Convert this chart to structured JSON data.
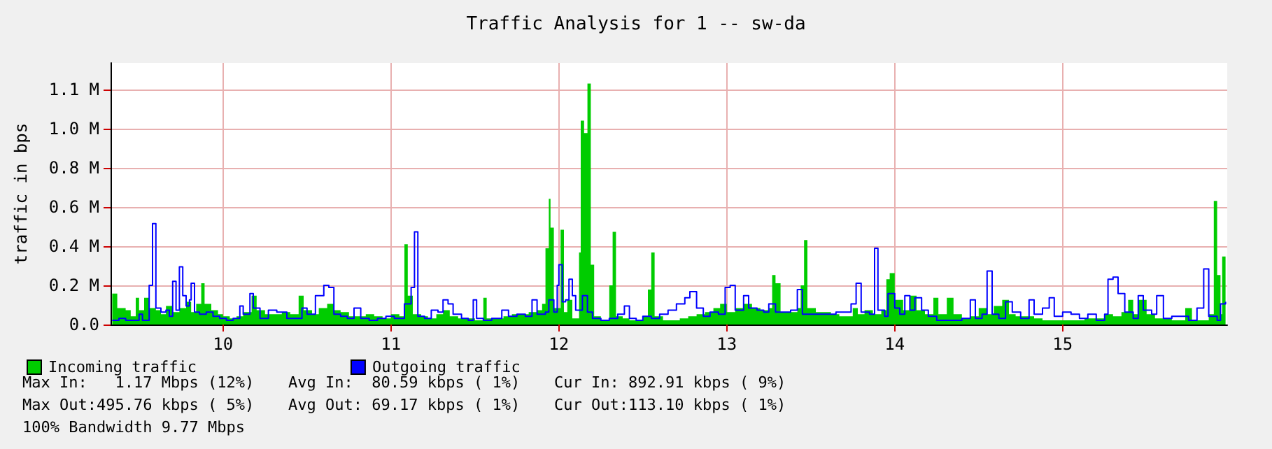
{
  "chart_data": {
    "type": "area",
    "title": "Traffic Analysis for 1 -- sw-da",
    "ylabel": "traffic in bps",
    "xlim": [
      9.33,
      15.98
    ],
    "xticks": [
      10,
      11,
      12,
      13,
      14,
      15
    ],
    "ylim": [
      0,
      1.27
    ],
    "yticks": [
      {
        "value": 0,
        "label": "0.0"
      },
      {
        "value": 0.19,
        "label": "0.2 M"
      },
      {
        "value": 0.38,
        "label": "0.4 M"
      },
      {
        "value": 0.57,
        "label": "0.6 M"
      },
      {
        "value": 0.76,
        "label": "0.8 M"
      },
      {
        "value": 0.95,
        "label": "1.0 M"
      },
      {
        "value": 1.14,
        "label": "1.1 M"
      }
    ],
    "grid": true,
    "legend": "bottom left",
    "marker": "none",
    "series": [
      {
        "name": "Incoming traffic",
        "color": "#00cc00",
        "x": [
          9.34,
          9.37,
          9.42,
          9.45,
          9.48,
          9.5,
          9.53,
          9.56,
          9.6,
          9.63,
          9.66,
          9.7,
          9.74,
          9.78,
          9.81,
          9.84,
          9.87,
          9.89,
          9.93,
          9.97,
          10.0,
          10.04,
          10.08,
          10.12,
          10.17,
          10.2,
          10.25,
          10.3,
          10.35,
          10.4,
          10.45,
          10.48,
          10.53,
          10.57,
          10.62,
          10.66,
          10.7,
          10.75,
          10.8,
          10.85,
          10.9,
          10.95,
          11.0,
          11.05,
          11.08,
          11.1,
          11.13,
          11.18,
          11.22,
          11.27,
          11.31,
          11.35,
          11.4,
          11.45,
          11.5,
          11.55,
          11.57,
          11.62,
          11.67,
          11.72,
          11.77,
          11.82,
          11.87,
          11.9,
          11.92,
          11.94,
          11.95,
          11.97,
          12.01,
          12.03,
          12.05,
          12.08,
          12.12,
          12.13,
          12.15,
          12.17,
          12.19,
          12.21,
          12.25,
          12.28,
          12.3,
          12.32,
          12.34,
          12.38,
          12.42,
          12.46,
          12.5,
          12.53,
          12.55,
          12.57,
          12.62,
          12.67,
          12.72,
          12.77,
          12.82,
          12.87,
          12.92,
          12.96,
          13.0,
          13.05,
          13.1,
          13.15,
          13.2,
          13.25,
          13.27,
          13.29,
          13.32,
          13.37,
          13.42,
          13.44,
          13.46,
          13.48,
          13.53,
          13.58,
          13.62,
          13.67,
          13.72,
          13.75,
          13.78,
          13.82,
          13.87,
          13.92,
          13.95,
          13.97,
          14.0,
          14.05,
          14.09,
          14.13,
          14.18,
          14.23,
          14.26,
          14.31,
          14.35,
          14.4,
          14.45,
          14.5,
          14.55,
          14.59,
          14.64,
          14.68,
          14.72,
          14.78,
          14.83,
          14.88,
          14.93,
          14.98,
          15.03,
          15.08,
          15.13,
          15.18,
          15.25,
          15.3,
          15.35,
          15.39,
          15.42,
          15.45,
          15.5,
          15.55,
          15.6,
          15.65,
          15.7,
          15.73,
          15.77,
          15.82,
          15.87,
          15.9,
          15.92,
          15.94,
          15.95,
          15.97
        ],
        "values": [
          0.15,
          0.08,
          0.07,
          0.04,
          0.13,
          0.07,
          0.13,
          0.08,
          0.07,
          0.05,
          0.09,
          0.06,
          0.08,
          0.11,
          0.06,
          0.1,
          0.2,
          0.1,
          0.07,
          0.05,
          0.04,
          0.03,
          0.04,
          0.06,
          0.14,
          0.07,
          0.05,
          0.05,
          0.06,
          0.05,
          0.14,
          0.07,
          0.05,
          0.08,
          0.1,
          0.07,
          0.06,
          0.04,
          0.04,
          0.05,
          0.04,
          0.03,
          0.05,
          0.04,
          0.39,
          0.14,
          0.05,
          0.04,
          0.03,
          0.05,
          0.07,
          0.04,
          0.03,
          0.03,
          0.02,
          0.13,
          0.03,
          0.03,
          0.04,
          0.05,
          0.05,
          0.06,
          0.07,
          0.1,
          0.37,
          0.61,
          0.47,
          0.08,
          0.46,
          0.06,
          0.12,
          0.03,
          0.35,
          0.99,
          0.93,
          1.17,
          0.29,
          0.04,
          0.02,
          0.02,
          0.19,
          0.45,
          0.04,
          0.03,
          0.02,
          0.02,
          0.04,
          0.17,
          0.35,
          0.04,
          0.02,
          0.02,
          0.03,
          0.04,
          0.05,
          0.06,
          0.08,
          0.1,
          0.06,
          0.08,
          0.1,
          0.08,
          0.07,
          0.08,
          0.24,
          0.2,
          0.06,
          0.06,
          0.08,
          0.19,
          0.41,
          0.08,
          0.06,
          0.06,
          0.05,
          0.04,
          0.04,
          0.08,
          0.05,
          0.07,
          0.05,
          0.07,
          0.22,
          0.25,
          0.12,
          0.07,
          0.14,
          0.07,
          0.05,
          0.13,
          0.05,
          0.13,
          0.05,
          0.03,
          0.04,
          0.08,
          0.05,
          0.09,
          0.12,
          0.05,
          0.04,
          0.04,
          0.03,
          0.02,
          0.02,
          0.02,
          0.02,
          0.02,
          0.03,
          0.03,
          0.05,
          0.04,
          0.06,
          0.12,
          0.05,
          0.12,
          0.05,
          0.03,
          0.03,
          0.02,
          0.02,
          0.08,
          0.02,
          0.02,
          0.05,
          0.6,
          0.24,
          0.05,
          0.33,
          0.87
        ]
      },
      {
        "name": "Outgoing traffic",
        "type": "step",
        "color": "#0000ff",
        "x": [
          9.34,
          9.38,
          9.42,
          9.47,
          9.5,
          9.52,
          9.56,
          9.58,
          9.6,
          9.63,
          9.66,
          9.68,
          9.7,
          9.72,
          9.74,
          9.76,
          9.78,
          9.8,
          9.81,
          9.83,
          9.86,
          9.9,
          9.94,
          9.98,
          10.02,
          10.06,
          10.1,
          10.12,
          10.16,
          10.18,
          10.22,
          10.27,
          10.32,
          10.38,
          10.43,
          10.47,
          10.5,
          10.55,
          10.6,
          10.63,
          10.66,
          10.7,
          10.74,
          10.78,
          10.82,
          10.87,
          10.92,
          10.97,
          11.02,
          11.08,
          11.12,
          11.14,
          11.16,
          11.2,
          11.24,
          11.28,
          11.31,
          11.34,
          11.37,
          11.42,
          11.46,
          11.49,
          11.51,
          11.55,
          11.6,
          11.66,
          11.7,
          11.75,
          11.8,
          11.84,
          11.87,
          11.92,
          11.94,
          11.97,
          11.99,
          12.0,
          12.02,
          12.04,
          12.06,
          12.08,
          12.1,
          12.14,
          12.17,
          12.2,
          12.25,
          12.3,
          12.35,
          12.39,
          12.42,
          12.46,
          12.5,
          12.55,
          12.6,
          12.65,
          12.7,
          12.75,
          12.78,
          12.82,
          12.86,
          12.9,
          12.95,
          12.99,
          13.02,
          13.05,
          13.1,
          13.13,
          13.18,
          13.22,
          13.25,
          13.29,
          13.33,
          13.38,
          13.42,
          13.45,
          13.5,
          13.55,
          13.6,
          13.65,
          13.7,
          13.74,
          13.77,
          13.8,
          13.85,
          13.88,
          13.9,
          13.94,
          13.96,
          14.0,
          14.03,
          14.06,
          14.09,
          14.12,
          14.16,
          14.2,
          14.25,
          14.3,
          14.35,
          14.4,
          14.45,
          14.48,
          14.52,
          14.55,
          14.58,
          14.62,
          14.66,
          14.7,
          14.75,
          14.8,
          14.83,
          14.88,
          14.92,
          14.95,
          15.0,
          15.05,
          15.1,
          15.15,
          15.2,
          15.25,
          15.27,
          15.3,
          15.33,
          15.37,
          15.42,
          15.45,
          15.48,
          15.53,
          15.56,
          15.6,
          15.65,
          15.7,
          15.75,
          15.8,
          15.84,
          15.87,
          15.92,
          15.94,
          15.97
        ],
        "values": [
          0.02,
          0.03,
          0.02,
          0.02,
          0.05,
          0.02,
          0.19,
          0.49,
          0.08,
          0.06,
          0.07,
          0.04,
          0.21,
          0.07,
          0.28,
          0.14,
          0.09,
          0.12,
          0.2,
          0.06,
          0.05,
          0.06,
          0.04,
          0.03,
          0.02,
          0.03,
          0.09,
          0.05,
          0.15,
          0.08,
          0.03,
          0.07,
          0.06,
          0.03,
          0.03,
          0.08,
          0.05,
          0.14,
          0.19,
          0.18,
          0.05,
          0.04,
          0.03,
          0.08,
          0.03,
          0.02,
          0.03,
          0.04,
          0.03,
          0.1,
          0.18,
          0.45,
          0.04,
          0.03,
          0.07,
          0.06,
          0.12,
          0.1,
          0.05,
          0.03,
          0.02,
          0.12,
          0.03,
          0.02,
          0.03,
          0.07,
          0.04,
          0.05,
          0.04,
          0.12,
          0.05,
          0.06,
          0.12,
          0.06,
          0.19,
          0.29,
          0.11,
          0.12,
          0.22,
          0.14,
          0.07,
          0.14,
          0.06,
          0.03,
          0.02,
          0.03,
          0.05,
          0.09,
          0.03,
          0.02,
          0.04,
          0.03,
          0.05,
          0.07,
          0.1,
          0.13,
          0.16,
          0.08,
          0.04,
          0.06,
          0.05,
          0.18,
          0.19,
          0.07,
          0.14,
          0.08,
          0.07,
          0.06,
          0.1,
          0.06,
          0.06,
          0.07,
          0.17,
          0.05,
          0.05,
          0.05,
          0.05,
          0.06,
          0.06,
          0.1,
          0.2,
          0.06,
          0.05,
          0.37,
          0.07,
          0.04,
          0.15,
          0.08,
          0.05,
          0.14,
          0.07,
          0.13,
          0.07,
          0.04,
          0.02,
          0.02,
          0.02,
          0.03,
          0.12,
          0.03,
          0.05,
          0.26,
          0.05,
          0.03,
          0.11,
          0.06,
          0.03,
          0.12,
          0.05,
          0.08,
          0.13,
          0.04,
          0.06,
          0.05,
          0.03,
          0.05,
          0.02,
          0.05,
          0.22,
          0.23,
          0.15,
          0.06,
          0.03,
          0.14,
          0.07,
          0.05,
          0.14,
          0.03,
          0.04,
          0.04,
          0.02,
          0.08,
          0.27,
          0.04,
          0.02,
          0.1,
          0.11
        ]
      }
    ],
    "annotations": [
      "Max In:   1.17 Mbps (12%)",
      "Avg In:  80.59 kbps ( 1%)",
      "Cur In: 892.91 kbps ( 9%)",
      "Max Out:495.76 kbps ( 5%)",
      "Avg Out: 69.17 kbps ( 1%)",
      "Cur Out:113.10 kbps ( 1%)",
      "100% Bandwidth 9.77 Mbps"
    ]
  }
}
